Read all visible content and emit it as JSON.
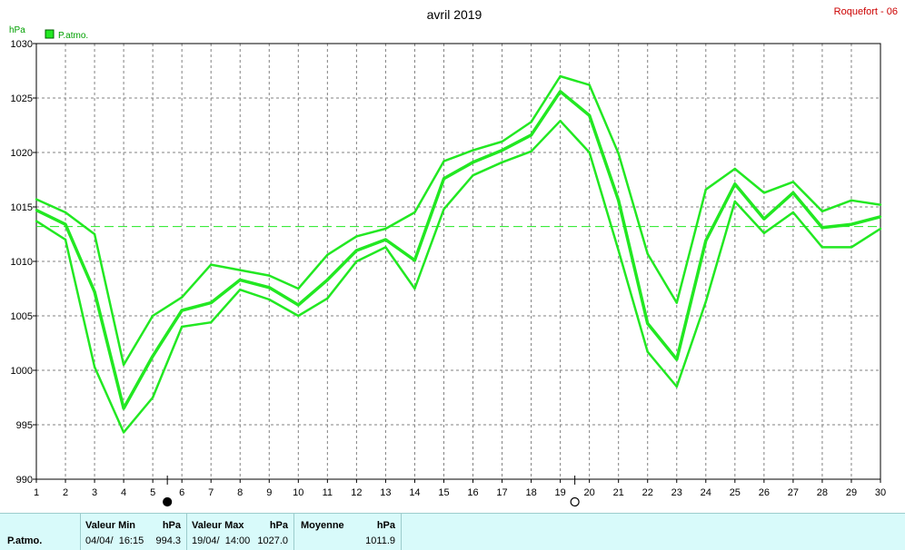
{
  "header": {
    "title": "avril 2019",
    "station": "Roquefort - 06",
    "unit": "hPa",
    "legend_label": "P.atmo."
  },
  "chart_data": {
    "type": "line",
    "title": "avril 2019",
    "ylabel": "hPa",
    "categories": [
      1,
      2,
      3,
      4,
      5,
      6,
      7,
      8,
      9,
      10,
      11,
      12,
      13,
      14,
      15,
      16,
      17,
      18,
      19,
      20,
      21,
      22,
      23,
      24,
      25,
      26,
      27,
      28,
      29,
      30
    ],
    "ylim": [
      990,
      1030
    ],
    "yticks": [
      990,
      995,
      1000,
      1005,
      1010,
      1015,
      1020,
      1025,
      1030
    ],
    "grid": true,
    "legend_position": "top-left",
    "series": [
      {
        "name": "P.atmo.",
        "role": "mean",
        "values": [
          1014.7,
          1013.4,
          1007.2,
          996.5,
          1001.3,
          1005.5,
          1006.2,
          1008.3,
          1007.6,
          1006.0,
          1008.3,
          1011.0,
          1012.0,
          1010.1,
          1017.6,
          1019.1,
          1020.2,
          1021.6,
          1025.6,
          1023.4,
          1015.6,
          1004.3,
          1001.0,
          1011.9,
          1017.1,
          1013.9,
          1016.3,
          1013.1,
          1013.4,
          1014.1
        ]
      },
      {
        "role": "max",
        "values": [
          1015.7,
          1014.5,
          1012.5,
          1000.5,
          1005.0,
          1006.7,
          1009.7,
          1009.2,
          1008.7,
          1007.5,
          1010.6,
          1012.3,
          1013.0,
          1014.5,
          1019.2,
          1020.2,
          1021.0,
          1022.8,
          1027.0,
          1026.2,
          1019.9,
          1010.7,
          1006.2,
          1016.6,
          1018.5,
          1016.3,
          1017.3,
          1014.6,
          1015.6,
          1015.2
        ]
      },
      {
        "role": "min",
        "values": [
          1013.7,
          1012.0,
          1000.3,
          994.3,
          997.5,
          1004.0,
          1004.4,
          1007.4,
          1006.5,
          1005.0,
          1006.6,
          1010.0,
          1011.3,
          1007.5,
          1014.8,
          1017.9,
          1019.1,
          1020.1,
          1022.9,
          1020.0,
          1011.0,
          1001.7,
          998.5,
          1006.3,
          1015.5,
          1012.6,
          1014.5,
          1011.3,
          1011.3,
          1013.0
        ]
      }
    ],
    "reference_line": 1013.2,
    "markers": [
      {
        "x": 5.5,
        "symbol": "filled-circle"
      },
      {
        "x": 19.5,
        "symbol": "open-circle"
      }
    ],
    "colors": {
      "line": "#22e822",
      "grid": "#808080",
      "axis": "#000000",
      "station": "#cc0000"
    }
  },
  "stats": {
    "row_label": "P.atmo.",
    "min_header": "Valeur Min",
    "min_unit": "hPa",
    "min_date": "04/04/  16:15",
    "min_value": "994.3",
    "max_header": "Valeur Max",
    "max_unit": "hPa",
    "max_date": "19/04/  14:00",
    "max_value": "1027.0",
    "avg_header": "Moyenne",
    "avg_unit": "hPa",
    "avg_value": "1011.9"
  }
}
